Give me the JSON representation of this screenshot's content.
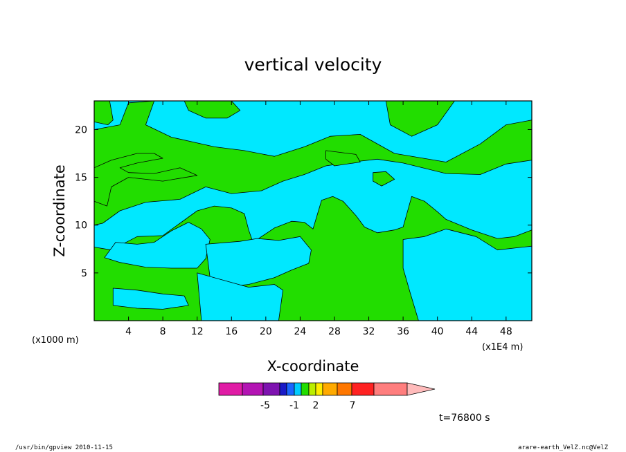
{
  "chart_data": {
    "type": "heatmap",
    "title": "vertical velocity",
    "xlabel": "X-coordinate",
    "ylabel": "Z-coordinate",
    "x_unit_left": "(x1000 m)",
    "x_unit_right": "(x1E4 m)",
    "xlim": [
      0,
      51
    ],
    "ylim": [
      0,
      23
    ],
    "x_ticks": [
      4,
      8,
      12,
      16,
      20,
      24,
      28,
      32,
      36,
      40,
      44,
      48
    ],
    "y_ticks": [
      5,
      10,
      15,
      20
    ],
    "colors": {
      "negative": "#00e8ff",
      "positive": "#22dd00",
      "contour": "#000000"
    },
    "regions": [
      {
        "sign": "positive",
        "points": [
          [
            0,
            23
          ],
          [
            1.8,
            23
          ],
          [
            2.2,
            21
          ],
          [
            1.6,
            20.5
          ],
          [
            0,
            20.8
          ]
        ]
      },
      {
        "sign": "positive",
        "points": [
          [
            10.5,
            23
          ],
          [
            16,
            23
          ],
          [
            17,
            22
          ],
          [
            15.5,
            21.2
          ],
          [
            13,
            21.2
          ],
          [
            11,
            22
          ]
        ]
      },
      {
        "sign": "positive",
        "points": [
          [
            0,
            20
          ],
          [
            3,
            20.5
          ],
          [
            4,
            22.8
          ],
          [
            7,
            23
          ],
          [
            6,
            20.5
          ],
          [
            9,
            19.2
          ],
          [
            14,
            18.2
          ],
          [
            17.5,
            17.8
          ],
          [
            21,
            17.2
          ],
          [
            24.5,
            18.2
          ],
          [
            27.5,
            19.3
          ],
          [
            31,
            19.5
          ],
          [
            35,
            17.5
          ],
          [
            41,
            16.6
          ],
          [
            45,
            18.5
          ],
          [
            48,
            20.5
          ],
          [
            51,
            21
          ],
          [
            51,
            16.8
          ],
          [
            48,
            16.4
          ],
          [
            45,
            15.3
          ],
          [
            41,
            15.4
          ],
          [
            36,
            16.5
          ],
          [
            33,
            16.9
          ],
          [
            30,
            16.6
          ],
          [
            27,
            16.2
          ],
          [
            24.5,
            15.3
          ],
          [
            22,
            14.6
          ],
          [
            19.5,
            13.6
          ],
          [
            16,
            13.3
          ],
          [
            13,
            14
          ],
          [
            10,
            12.7
          ],
          [
            6,
            12.4
          ],
          [
            3,
            11.5
          ],
          [
            1,
            10.2
          ],
          [
            0,
            10
          ],
          [
            0,
            16
          ],
          [
            2,
            16.8
          ],
          [
            5,
            17.5
          ],
          [
            7,
            17.5
          ],
          [
            8,
            17
          ],
          [
            5,
            16.5
          ],
          [
            3,
            16
          ],
          [
            4,
            15.5
          ],
          [
            7,
            15.4
          ],
          [
            10,
            16
          ],
          [
            12,
            15.2
          ],
          [
            8,
            14.6
          ],
          [
            4,
            15
          ],
          [
            2,
            14
          ],
          [
            1.5,
            12
          ],
          [
            0,
            12.5
          ]
        ]
      },
      {
        "sign": "positive",
        "points": [
          [
            34,
            23
          ],
          [
            42,
            23
          ],
          [
            40,
            20.5
          ],
          [
            37,
            19.3
          ],
          [
            34.5,
            20.5
          ]
        ]
      },
      {
        "sign": "positive",
        "points": [
          [
            27,
            17.8
          ],
          [
            30.5,
            17.4
          ],
          [
            31,
            16.6
          ],
          [
            28,
            16.2
          ],
          [
            27,
            16.9
          ]
        ]
      },
      {
        "sign": "positive",
        "points": [
          [
            32.5,
            15.5
          ],
          [
            34,
            15.6
          ],
          [
            35,
            14.8
          ],
          [
            33.5,
            14.1
          ],
          [
            32.5,
            14.6
          ]
        ]
      },
      {
        "sign": "positive",
        "points": [
          [
            0,
            0
          ],
          [
            0,
            7.7
          ],
          [
            2,
            7.4
          ],
          [
            5,
            8.8
          ],
          [
            8,
            8.9
          ],
          [
            10,
            10.2
          ],
          [
            12,
            11.5
          ],
          [
            14,
            12
          ],
          [
            16,
            11.8
          ],
          [
            17.5,
            11.2
          ],
          [
            18,
            9.5
          ],
          [
            18.5,
            8.2
          ],
          [
            21,
            9.7
          ],
          [
            23,
            10.4
          ],
          [
            24.5,
            10.3
          ],
          [
            25.5,
            9.6
          ],
          [
            26.5,
            12.6
          ],
          [
            27.8,
            13
          ],
          [
            29,
            12.5
          ],
          [
            30.5,
            11
          ],
          [
            31.5,
            9.8
          ],
          [
            33,
            9.2
          ],
          [
            35,
            9.5
          ],
          [
            36,
            9.8
          ],
          [
            37,
            13
          ],
          [
            38.5,
            12.5
          ],
          [
            40,
            11.4
          ],
          [
            41,
            10.6
          ],
          [
            44,
            9.5
          ],
          [
            47,
            8.6
          ],
          [
            49,
            8.8
          ],
          [
            51,
            9.5
          ],
          [
            51,
            0
          ]
        ]
      },
      {
        "sign": "negative",
        "points": [
          [
            2.5,
            8.2
          ],
          [
            5,
            8
          ],
          [
            7,
            8.2
          ],
          [
            9,
            9.4
          ],
          [
            11,
            10.3
          ],
          [
            12.5,
            9.6
          ],
          [
            13.5,
            8.5
          ],
          [
            13,
            6.5
          ],
          [
            12,
            5.5
          ],
          [
            9,
            5.5
          ],
          [
            6,
            5.6
          ],
          [
            3,
            6.1
          ],
          [
            1.2,
            6.6
          ]
        ]
      },
      {
        "sign": "negative",
        "points": [
          [
            13,
            8
          ],
          [
            17,
            8.3
          ],
          [
            19,
            8.6
          ],
          [
            21.5,
            8.4
          ],
          [
            24,
            8.8
          ],
          [
            25.3,
            7.4
          ],
          [
            25,
            6
          ],
          [
            23,
            5.3
          ],
          [
            21,
            4.5
          ],
          [
            18,
            3.8
          ],
          [
            15,
            3.5
          ],
          [
            13.5,
            4.5
          ]
        ]
      },
      {
        "sign": "negative",
        "points": [
          [
            12,
            5
          ],
          [
            18,
            3.5
          ],
          [
            21,
            3.8
          ],
          [
            22,
            3.2
          ],
          [
            21.5,
            0
          ],
          [
            12.5,
            0
          ]
        ]
      },
      {
        "sign": "negative",
        "points": [
          [
            36,
            8.5
          ],
          [
            38.5,
            8.8
          ],
          [
            41,
            9.6
          ],
          [
            44.5,
            8.8
          ],
          [
            47,
            7.4
          ],
          [
            49,
            7.6
          ],
          [
            51,
            7.8
          ],
          [
            51,
            0
          ],
          [
            37.8,
            0
          ],
          [
            36.8,
            3
          ],
          [
            36,
            5.5
          ]
        ]
      },
      {
        "sign": "negative",
        "points": [
          [
            2.2,
            3.4
          ],
          [
            5,
            3.2
          ],
          [
            8,
            2.8
          ],
          [
            10.5,
            2.6
          ],
          [
            11,
            1.6
          ],
          [
            8,
            1.2
          ],
          [
            5,
            1.3
          ],
          [
            2.2,
            1.6
          ]
        ]
      }
    ],
    "colorbar": {
      "colors": [
        "#e01ca5",
        "#b314b3",
        "#7e13b0",
        "#1a1ac7",
        "#1a66ff",
        "#00ccff",
        "#22dd00",
        "#bbee00",
        "#ffee00",
        "#ffaa00",
        "#ff7700",
        "#ff2222",
        "#ff7e7e",
        "#ffbbbb"
      ],
      "tick_labels": [
        "-5",
        "-1",
        "2",
        "7"
      ]
    },
    "annotations": {
      "time": "t=76800 s",
      "footer_left": "/usr/bin/gpview 2010-11-15",
      "footer_right": "arare-earth_VelZ.nc@VelZ"
    }
  }
}
